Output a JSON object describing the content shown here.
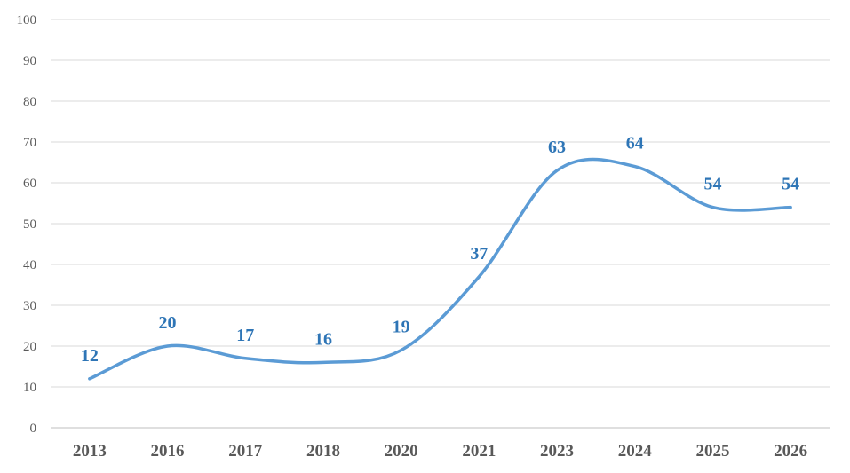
{
  "chart_data": {
    "type": "line",
    "categories": [
      "2013",
      "2016",
      "2017",
      "2018",
      "2020",
      "2021",
      "2023",
      "2024",
      "2025",
      "2026"
    ],
    "series": [
      {
        "values": [
          12,
          20,
          17,
          16,
          19,
          37,
          63,
          64,
          54,
          54
        ]
      }
    ],
    "yticks": [
      "0",
      "10",
      "20",
      "30",
      "40",
      "50",
      "60",
      "70",
      "80",
      "90",
      "100"
    ],
    "ylim": [
      0,
      100
    ],
    "grid": true,
    "smooth": true,
    "data_labels": true,
    "colors": {
      "line": "#5b9bd5",
      "label": "#2e75b6",
      "grid": "#d9d9d9",
      "tick": "#595959"
    }
  }
}
